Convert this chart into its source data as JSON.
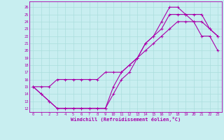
{
  "xlabel": "Windchill (Refroidissement éolien,°C)",
  "bg_color": "#c8eef0",
  "grid_color": "#aadddd",
  "line_color": "#aa00aa",
  "xlim": [
    -0.5,
    23.5
  ],
  "ylim": [
    11.5,
    26.8
  ],
  "xticks": [
    0,
    1,
    2,
    3,
    4,
    5,
    6,
    7,
    8,
    9,
    10,
    11,
    12,
    13,
    14,
    15,
    16,
    17,
    18,
    19,
    20,
    21,
    22,
    23
  ],
  "yticks": [
    12,
    13,
    14,
    15,
    16,
    17,
    18,
    19,
    20,
    21,
    22,
    23,
    24,
    25,
    26
  ],
  "line1_x": [
    0,
    1,
    2,
    3,
    4,
    5,
    6,
    7,
    8,
    9,
    10,
    11,
    12,
    13,
    14,
    15,
    16,
    17,
    18,
    19,
    20,
    21,
    22,
    23
  ],
  "line1_y": [
    15,
    14,
    13,
    12,
    12,
    12,
    12,
    12,
    12,
    12,
    14,
    16,
    17,
    19,
    21,
    22,
    24,
    26,
    26,
    25,
    25,
    25,
    23,
    22
  ],
  "line2_x": [
    0,
    1,
    2,
    3,
    4,
    5,
    6,
    7,
    8,
    9,
    10,
    11,
    12,
    13,
    14,
    15,
    16,
    17,
    18,
    19,
    20,
    21,
    22,
    23
  ],
  "line2_y": [
    15,
    14,
    13,
    12,
    12,
    12,
    12,
    12,
    12,
    12,
    15,
    17,
    18,
    19,
    21,
    22,
    23,
    25,
    25,
    25,
    24,
    22,
    22,
    20
  ],
  "line3_x": [
    0,
    1,
    2,
    3,
    4,
    5,
    6,
    7,
    8,
    9,
    10,
    11,
    12,
    13,
    14,
    15,
    16,
    17,
    18,
    19,
    20,
    21,
    22,
    23
  ],
  "line3_y": [
    15,
    15,
    15,
    16,
    16,
    16,
    16,
    16,
    16,
    17,
    17,
    17,
    18,
    19,
    20,
    21,
    22,
    23,
    24,
    24,
    24,
    24,
    23,
    22
  ],
  "marker_size": 2.5,
  "line_width": 0.8
}
